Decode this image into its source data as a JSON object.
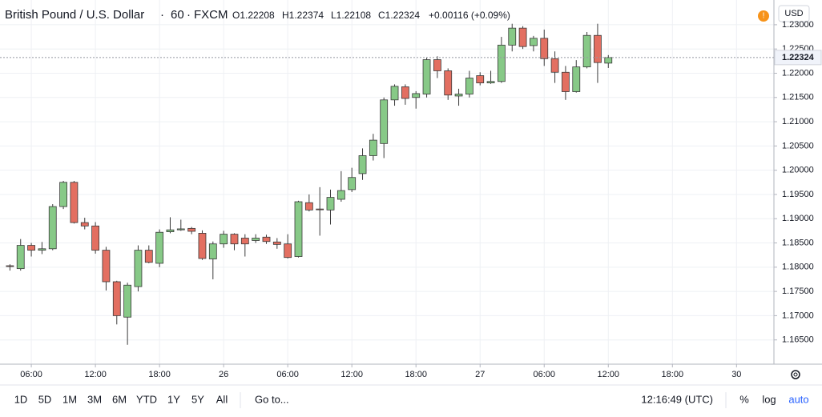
{
  "chart_data": {
    "type": "candlestick",
    "title": "British Pound / U.S. Dollar",
    "interval": "60",
    "source": "FXCM",
    "ohlc_legend": [
      "O1.22208",
      "H1.22374",
      "L1.22108",
      "C1.22324",
      "+0.00116 (+0.09%)"
    ],
    "currency": "USD",
    "x": [
      4,
      5,
      6,
      7,
      8,
      9,
      10,
      11,
      12,
      13,
      14,
      15,
      16,
      17,
      18,
      19,
      20,
      21,
      22,
      23,
      24,
      25,
      26,
      27,
      28,
      29,
      30,
      31,
      32,
      33,
      34,
      35,
      36,
      37,
      38,
      39,
      40,
      41,
      42,
      43,
      44,
      45,
      46,
      47,
      48,
      49,
      50,
      51,
      52,
      53,
      54,
      55,
      56,
      57,
      58,
      59,
      60
    ],
    "open": [
      1.1803,
      1.1797,
      1.1845,
      1.1835,
      1.1838,
      1.1925,
      1.1975,
      1.1892,
      1.1885,
      1.1835,
      1.177,
      1.1697,
      1.176,
      1.1835,
      1.1808,
      1.1873,
      1.1877,
      1.188,
      1.187,
      1.1817,
      1.1848,
      1.1868,
      1.186,
      1.1855,
      1.1862,
      1.1852,
      1.1848,
      1.1822,
      1.1933,
      1.192,
      1.1918,
      1.194,
      1.196,
      1.1993,
      1.203,
      1.2055,
      1.2145,
      1.2172,
      1.215,
      1.2157,
      1.2228,
      1.2205,
      1.2153,
      1.2157,
      1.2195,
      1.218,
      1.2183,
      1.2258,
      1.2293,
      1.2257,
      1.2272,
      1.223,
      1.2202,
      1.2162,
      1.2213,
      1.2278,
      1.22208
    ],
    "high": [
      1.1806,
      1.1858,
      1.185,
      1.1852,
      1.193,
      1.1978,
      1.1978,
      1.1902,
      1.1893,
      1.1842,
      1.1772,
      1.1768,
      1.1845,
      1.1845,
      1.1878,
      1.1903,
      1.1898,
      1.1883,
      1.1876,
      1.1853,
      1.1875,
      1.187,
      1.1868,
      1.1868,
      1.1867,
      1.186,
      1.1868,
      1.1937,
      1.195,
      1.1965,
      1.196,
      1.1998,
      1.2005,
      1.2045,
      1.2075,
      1.215,
      1.2177,
      1.2177,
      1.2163,
      1.2232,
      1.2235,
      1.221,
      1.2168,
      1.2205,
      1.2202,
      1.2205,
      1.2275,
      1.2302,
      1.2297,
      1.2277,
      1.229,
      1.2245,
      1.2215,
      1.2227,
      1.2285,
      1.2302,
      1.22374
    ],
    "low": [
      1.1793,
      1.1793,
      1.1822,
      1.1827,
      1.1835,
      1.192,
      1.189,
      1.1878,
      1.1828,
      1.1752,
      1.1682,
      1.164,
      1.175,
      1.1808,
      1.18,
      1.187,
      1.1875,
      1.1868,
      1.1815,
      1.1775,
      1.184,
      1.1835,
      1.1822,
      1.185,
      1.1848,
      1.1838,
      1.1818,
      1.182,
      1.1915,
      1.1865,
      1.1888,
      1.1935,
      1.1955,
      1.198,
      1.202,
      1.2025,
      1.2133,
      1.2135,
      1.2127,
      1.215,
      1.219,
      1.2145,
      1.2133,
      1.215,
      1.2175,
      1.2178,
      1.218,
      1.2245,
      1.225,
      1.2245,
      1.2215,
      1.218,
      1.2145,
      1.216,
      1.221,
      1.218,
      1.22108
    ],
    "close": [
      1.1802,
      1.1845,
      1.1835,
      1.1838,
      1.1925,
      1.1975,
      1.1892,
      1.1885,
      1.1835,
      1.177,
      1.17,
      1.1763,
      1.1835,
      1.181,
      1.1872,
      1.1877,
      1.1879,
      1.1874,
      1.1818,
      1.1848,
      1.1868,
      1.1848,
      1.1848,
      1.186,
      1.1853,
      1.1847,
      1.182,
      1.1935,
      1.1918,
      1.1919,
      1.1944,
      1.1958,
      1.1985,
      1.203,
      1.2062,
      1.2145,
      1.2173,
      1.2148,
      1.2158,
      1.2228,
      1.2205,
      1.2155,
      1.2157,
      1.219,
      1.218,
      1.2183,
      1.2258,
      1.2293,
      1.2255,
      1.2272,
      1.223,
      1.2202,
      1.2162,
      1.2213,
      1.2278,
      1.2222,
      1.22324
    ],
    "up_color": "#87c987",
    "down_color": "#e36f61",
    "last_price": 1.22324,
    "xlim": [
      3.07,
      75.5
    ],
    "xticks": [
      {
        "value": 6,
        "label": "06:00"
      },
      {
        "value": 12,
        "label": "12:00"
      },
      {
        "value": 18,
        "label": "18:00"
      },
      {
        "value": 24,
        "label": "26"
      },
      {
        "value": 30,
        "label": "06:00"
      },
      {
        "value": 36,
        "label": "12:00"
      },
      {
        "value": 42,
        "label": "18:00"
      },
      {
        "value": 48,
        "label": "27"
      },
      {
        "value": 54,
        "label": "06:00"
      },
      {
        "value": 60,
        "label": "12:00"
      },
      {
        "value": 66,
        "label": "18:00"
      },
      {
        "value": 72,
        "label": "30"
      }
    ],
    "ylim": [
      1.16,
      1.2351
    ],
    "yticks": [
      {
        "value": 1.165,
        "label": "1.16500"
      },
      {
        "value": 1.17,
        "label": "1.17000"
      },
      {
        "value": 1.175,
        "label": "1.17500"
      },
      {
        "value": 1.18,
        "label": "1.18000"
      },
      {
        "value": 1.185,
        "label": "1.18500"
      },
      {
        "value": 1.19,
        "label": "1.19000"
      },
      {
        "value": 1.195,
        "label": "1.19500"
      },
      {
        "value": 1.2,
        "label": "1.20000"
      },
      {
        "value": 1.205,
        "label": "1.20500"
      },
      {
        "value": 1.21,
        "label": "1.21000"
      },
      {
        "value": 1.215,
        "label": "1.21500"
      },
      {
        "value": 1.22,
        "label": "1.22000"
      },
      {
        "value": 1.225,
        "label": "1.22500"
      },
      {
        "value": 1.23,
        "label": "1.23000"
      }
    ],
    "grid": true,
    "log": false
  },
  "toolbar": {
    "ranges": [
      "1D",
      "5D",
      "1M",
      "3M",
      "6M",
      "YTD",
      "1Y",
      "5Y",
      "All"
    ],
    "goto": "Go to...",
    "clock": "12:16:49 (UTC)",
    "options": [
      "%",
      "log",
      "auto"
    ]
  }
}
